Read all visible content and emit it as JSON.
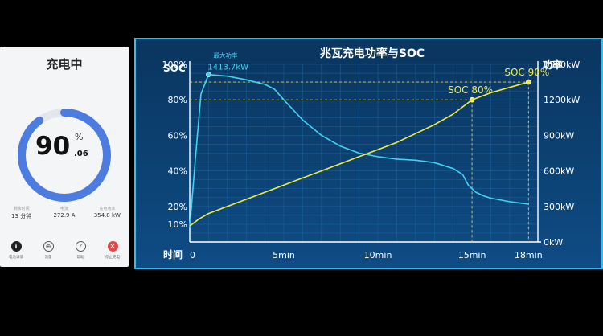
{
  "phone": {
    "title": "充电中",
    "percent_main": "90",
    "percent_sign": "%",
    "percent_decimal": ".06",
    "progress": 0.9006,
    "stats": [
      {
        "label": "剩余时间",
        "value": "13 分钟"
      },
      {
        "label": "电流",
        "value": "272.9 A"
      },
      {
        "label": "充电功率",
        "value": "354.8 kW"
      }
    ],
    "nav": [
      {
        "icon": "info-icon",
        "glyph": "i",
        "label": "电池详情"
      },
      {
        "icon": "globe-icon",
        "glyph": "⊕",
        "label": "流量"
      },
      {
        "icon": "help-icon",
        "glyph": "?",
        "label": "帮助"
      },
      {
        "icon": "stop-icon",
        "glyph": "✕",
        "label": "停止充电"
      }
    ],
    "colors": {
      "ring": "#4c7ce0",
      "track": "#e3e6ec"
    }
  },
  "chart_data": {
    "type": "line",
    "title": "兆瓦充电功率与SOC",
    "xlabel": "时间",
    "ylabel_left": "SOC",
    "ylabel_right": "功率",
    "x_ticks": [
      "0",
      "5min",
      "10min",
      "15min",
      "18min"
    ],
    "x_tick_values": [
      0,
      5,
      10,
      15,
      18
    ],
    "xlim": [
      0,
      18.5
    ],
    "y_left_ticks": [
      "10%",
      "20%",
      "40%",
      "60%",
      "80%",
      "100%"
    ],
    "y_left_tick_values": [
      10,
      20,
      40,
      60,
      80,
      100
    ],
    "y_left_lim": [
      0,
      100
    ],
    "y_right_ticks": [
      "0kW",
      "300kW",
      "600kW",
      "900kW",
      "1200kW",
      "1500kW"
    ],
    "y_right_tick_values": [
      0,
      300,
      600,
      900,
      1200,
      1500
    ],
    "y_right_lim": [
      0,
      1500
    ],
    "series": [
      {
        "axis": "right",
        "color": "#3fd2f2",
        "x": [
          0,
          0.3,
          0.6,
          1.0,
          2,
          3,
          4,
          4.5,
          5,
          6,
          7,
          8,
          9,
          10,
          11,
          12,
          13,
          14,
          14.5,
          14.8,
          15.2,
          15.6,
          16,
          17,
          18
        ],
        "y": [
          120,
          700,
          1250,
          1413.7,
          1400,
          1370,
          1330,
          1290,
          1200,
          1030,
          900,
          810,
          750,
          720,
          700,
          690,
          670,
          620,
          570,
          480,
          420,
          390,
          370,
          340,
          320
        ]
      },
      {
        "axis": "left",
        "color": "#f2ea3c",
        "x": [
          0,
          0.5,
          1,
          2,
          3,
          4,
          5,
          6,
          7,
          8,
          9,
          10,
          11,
          12,
          13,
          14,
          15,
          16,
          17,
          18
        ],
        "y": [
          9,
          13,
          16,
          20,
          24,
          28,
          32,
          36,
          40,
          44,
          48,
          52,
          56,
          61,
          66,
          72,
          80,
          84,
          87,
          90
        ]
      }
    ],
    "annotations": [
      {
        "title": "最大功率",
        "label": "1413.7kW",
        "x": 1.0,
        "y": 1413.7,
        "axis": "right",
        "color": "#3fd2f2"
      },
      {
        "label": "SOC 80%",
        "x": 15,
        "y": 80,
        "axis": "left",
        "color": "#f2ea3c"
      },
      {
        "label": "SOC 90%",
        "x": 18,
        "y": 90,
        "axis": "left",
        "color": "#f2ea3c"
      }
    ],
    "grid": true,
    "colors": {
      "bg_top": "#0b3b6c",
      "bg_bottom": "#0d4a80",
      "border": "#2fb4e8",
      "text": "#ffffff",
      "grid": "#1f6aa4"
    }
  }
}
